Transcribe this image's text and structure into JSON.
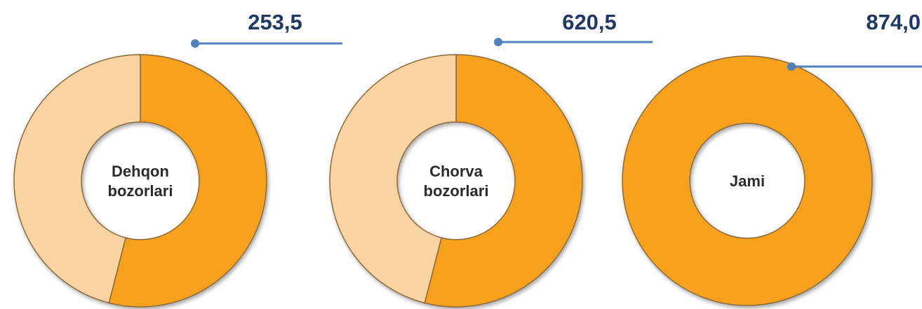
{
  "chart_data": [
    {
      "type": "pie",
      "center_label": [
        "Dehqon",
        "bozorlari"
      ],
      "total": 253.5,
      "total_label": "253,5",
      "values": [
        54,
        46
      ],
      "colors": [
        "#f7a11e",
        "#fcd3a2"
      ]
    },
    {
      "type": "pie",
      "center_label": [
        "Chorva",
        "bozorlari"
      ],
      "total": 620.5,
      "total_label": "620,5",
      "values": [
        54,
        46
      ],
      "colors": [
        "#f7a11e",
        "#fcd3a2"
      ]
    },
    {
      "type": "pie",
      "center_label": [
        "Jami"
      ],
      "total": 874.0,
      "total_label": "874,0",
      "values": [
        100
      ],
      "colors": [
        "#f7a11e"
      ]
    }
  ]
}
